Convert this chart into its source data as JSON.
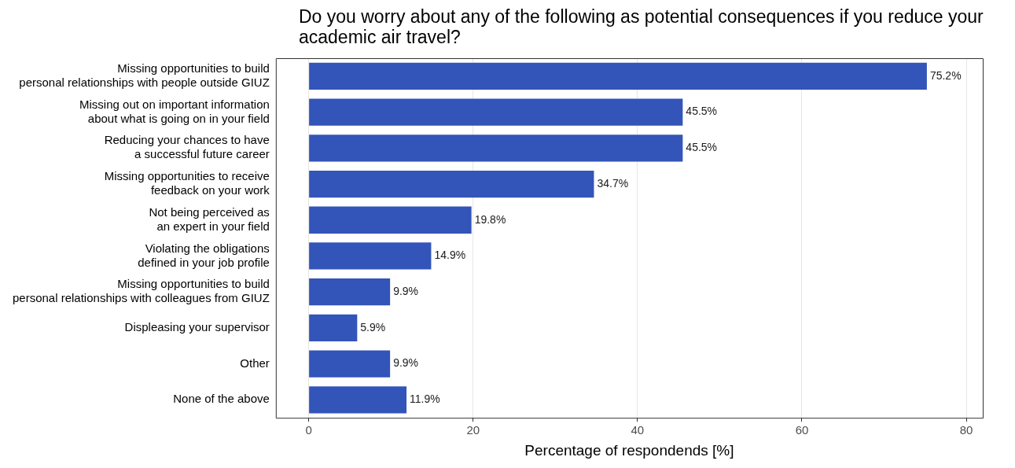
{
  "chart_data": {
    "type": "bar",
    "orientation": "horizontal",
    "title": "Do you worry about any of the following as potential consequences if you reduce your academic air travel?",
    "xlabel": "Percentage of respondends [%]",
    "categories": [
      "Missing opportunities to build\npersonal relationships with people outside GIUZ",
      "Missing out on important information\nabout what is going on in your field",
      "Reducing your chances to have\na successful future career",
      "Missing opportunities to receive\nfeedback on your work",
      "Not being perceived as\nan expert in your field",
      "Violating the obligations\ndefined in your job profile",
      "Missing opportunities to build\npersonal relationships with colleagues from GIUZ",
      "Displeasing your supervisor",
      "Other",
      "None of the above"
    ],
    "values": [
      75.2,
      45.5,
      45.5,
      34.7,
      19.8,
      14.9,
      9.9,
      5.9,
      9.9,
      11.9
    ],
    "value_labels": [
      "75.2%",
      "45.5%",
      "45.5%",
      "34.7%",
      "19.8%",
      "14.9%",
      "9.9%",
      "5.9%",
      "9.9%",
      "11.9%"
    ],
    "color": "#3354b8",
    "xlim": [
      -4,
      82
    ],
    "xticks": [
      0,
      20,
      40,
      60,
      80
    ],
    "grid": "x",
    "legend": false
  }
}
